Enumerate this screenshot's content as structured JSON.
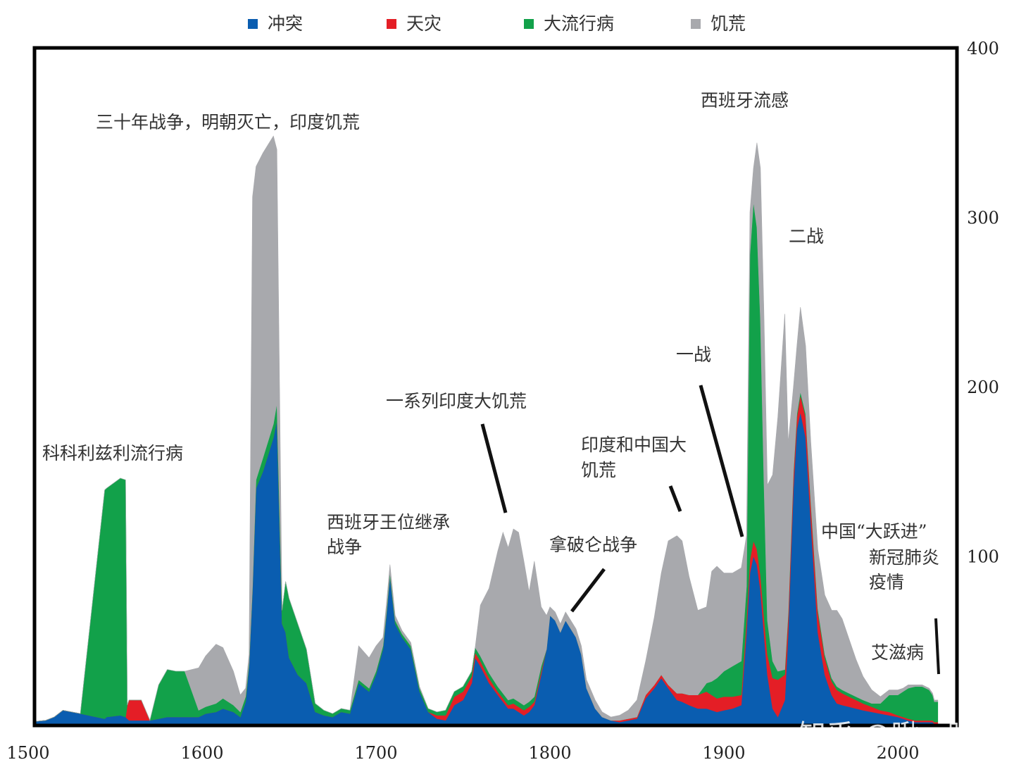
{
  "chart_data": {
    "type": "area",
    "stacked": true,
    "x_range": [
      1500,
      2030
    ],
    "ylim": [
      0,
      400
    ],
    "x_ticks": [
      1500,
      1600,
      1700,
      1800,
      1900,
      2000
    ],
    "y_ticks": [
      100,
      200,
      300,
      400
    ],
    "y_axis_side": "right",
    "grid": false,
    "legend_position": "top",
    "series": [
      {
        "name": "冲突",
        "color": "#0a5db0"
      },
      {
        "name": "天灾",
        "color": "#e41e26"
      },
      {
        "name": "大流行病",
        "color": "#12a14a"
      },
      {
        "name": "饥荒",
        "color": "#a8a9ad"
      }
    ],
    "x": [
      1500,
      1510,
      1515,
      1520,
      1530,
      1544,
      1545,
      1553,
      1556,
      1557,
      1558,
      1563,
      1565,
      1570,
      1575,
      1580,
      1585,
      1590,
      1598,
      1602,
      1608,
      1612,
      1618,
      1622,
      1625,
      1627,
      1629,
      1631,
      1635,
      1641,
      1643,
      1646,
      1648,
      1650,
      1655,
      1660,
      1665,
      1670,
      1675,
      1680,
      1685,
      1690,
      1696,
      1700,
      1704,
      1706,
      1708,
      1711,
      1715,
      1720,
      1725,
      1730,
      1735,
      1740,
      1745,
      1750,
      1755,
      1757,
      1760,
      1765,
      1770,
      1773,
      1776,
      1779,
      1782,
      1785,
      1788,
      1791,
      1795,
      1798,
      1800,
      1803,
      1806,
      1809,
      1812,
      1815,
      1818,
      1821,
      1826,
      1830,
      1835,
      1840,
      1845,
      1850,
      1855,
      1860,
      1864,
      1868,
      1873,
      1876,
      1880,
      1885,
      1890,
      1893,
      1896,
      1900,
      1905,
      1910,
      1913,
      1915,
      1917,
      1919,
      1921,
      1923,
      1925,
      1928,
      1931,
      1935,
      1937,
      1940,
      1942,
      1944,
      1947,
      1950,
      1954,
      1958,
      1962,
      1965,
      1968,
      1972,
      1976,
      1980,
      1985,
      1990,
      1995,
      2000,
      2003,
      2006,
      2010,
      2014,
      2018,
      2020,
      2021,
      2023
    ],
    "values": {
      "冲突": [
        2,
        3,
        5,
        9,
        7,
        4,
        5,
        6,
        5,
        4,
        3,
        3,
        3,
        3,
        4,
        5,
        5,
        5,
        5,
        7,
        8,
        10,
        8,
        5,
        14,
        35,
        80,
        140,
        150,
        170,
        180,
        60,
        55,
        40,
        30,
        25,
        8,
        6,
        5,
        8,
        7,
        25,
        20,
        30,
        45,
        65,
        88,
        60,
        52,
        45,
        20,
        8,
        4,
        3,
        12,
        15,
        25,
        40,
        35,
        25,
        18,
        14,
        10,
        10,
        8,
        6,
        8,
        12,
        30,
        45,
        65,
        62,
        55,
        62,
        57,
        52,
        42,
        22,
        10,
        5,
        3,
        2,
        3,
        4,
        16,
        22,
        28,
        22,
        15,
        14,
        12,
        10,
        10,
        9,
        8,
        9,
        10,
        12,
        55,
        90,
        100,
        95,
        80,
        55,
        30,
        10,
        5,
        15,
        55,
        140,
        175,
        185,
        170,
        120,
        55,
        30,
        18,
        13,
        12,
        11,
        10,
        9,
        8,
        7,
        6,
        5,
        4,
        3,
        2,
        2,
        2,
        2,
        1,
        1
      ],
      "天灾": [
        0,
        0,
        0,
        0,
        0,
        0,
        0,
        0,
        0,
        8,
        12,
        12,
        12,
        0,
        0,
        0,
        0,
        0,
        0,
        0,
        0,
        0,
        0,
        0,
        0,
        0,
        0,
        0,
        0,
        0,
        0,
        0,
        0,
        0,
        0,
        0,
        0,
        0,
        0,
        0,
        0,
        0,
        0,
        0,
        0,
        0,
        0,
        0,
        0,
        0,
        0,
        0,
        2,
        3,
        5,
        5,
        4,
        3,
        3,
        3,
        2,
        2,
        2,
        3,
        3,
        3,
        3,
        2,
        2,
        0,
        0,
        0,
        0,
        0,
        0,
        0,
        0,
        0,
        0,
        0,
        0,
        1,
        1,
        1,
        2,
        2,
        2,
        2,
        4,
        5,
        6,
        8,
        10,
        9,
        8,
        8,
        7,
        6,
        7,
        8,
        9,
        9,
        9,
        10,
        12,
        18,
        22,
        15,
        10,
        8,
        7,
        10,
        12,
        10,
        12,
        10,
        8,
        8,
        7,
        6,
        5,
        4,
        3,
        2,
        2,
        1,
        1,
        1,
        1,
        1,
        1,
        1,
        1,
        1
      ],
      "大流行病": [
        0,
        0,
        0,
        0,
        0,
        135,
        135,
        140,
        140,
        0,
        0,
        0,
        0,
        0,
        20,
        28,
        27,
        27,
        4,
        4,
        5,
        6,
        4,
        3,
        3,
        2,
        2,
        5,
        8,
        8,
        10,
        8,
        30,
        35,
        30,
        20,
        5,
        3,
        2,
        2,
        2,
        2,
        2,
        2,
        2,
        2,
        2,
        2,
        2,
        2,
        2,
        2,
        2,
        3,
        3,
        3,
        3,
        3,
        3,
        3,
        3,
        3,
        3,
        3,
        3,
        3,
        3,
        3,
        3,
        0,
        0,
        0,
        0,
        0,
        0,
        0,
        0,
        0,
        0,
        0,
        0,
        0,
        0,
        0,
        0,
        0,
        0,
        0,
        0,
        0,
        0,
        0,
        5,
        8,
        12,
        15,
        18,
        20,
        20,
        180,
        200,
        190,
        150,
        80,
        20,
        10,
        5,
        3,
        2,
        2,
        2,
        2,
        2,
        2,
        2,
        2,
        2,
        2,
        2,
        2,
        2,
        2,
        2,
        4,
        10,
        12,
        15,
        18,
        20,
        20,
        18,
        15,
        12,
        12
      ],
      "饥荒": [
        0,
        0,
        0,
        0,
        0,
        0,
        0,
        0,
        0,
        0,
        0,
        0,
        0,
        0,
        0,
        0,
        0,
        0,
        25,
        30,
        35,
        30,
        20,
        10,
        5,
        5,
        230,
        185,
        180,
        170,
        150,
        0,
        0,
        0,
        0,
        0,
        0,
        0,
        0,
        0,
        0,
        20,
        18,
        15,
        5,
        5,
        5,
        3,
        2,
        2,
        1,
        0,
        0,
        0,
        0,
        0,
        0,
        0,
        30,
        50,
        80,
        95,
        90,
        100,
        100,
        85,
        65,
        80,
        35,
        20,
        5,
        5,
        5,
        5,
        5,
        5,
        5,
        5,
        5,
        3,
        2,
        3,
        5,
        10,
        20,
        40,
        60,
        85,
        93,
        90,
        70,
        50,
        45,
        65,
        66,
        58,
        55,
        55,
        30,
        25,
        20,
        50,
        90,
        100,
        80,
        110,
        150,
        210,
        100,
        50,
        40,
        50,
        40,
        35,
        35,
        35,
        40,
        45,
        42,
        32,
        22,
        14,
        8,
        4,
        3,
        3,
        2,
        2,
        1,
        1,
        1,
        1,
        1,
        1
      ]
    },
    "annotations": [
      "科科利兹利流行病",
      "三十年战争，明朝灭亡，印度饥荒",
      "西班牙王位继承",
      "战争",
      "一系列印度大饥荒",
      "拿破仑战争",
      "印度和中国大",
      "饥荒",
      "一战",
      "西班牙流感",
      "二战",
      "中国“大跃进”",
      "新冠肺炎",
      "疫情",
      "艾滋病"
    ]
  },
  "watermark": "知乎 @瞅一眼"
}
